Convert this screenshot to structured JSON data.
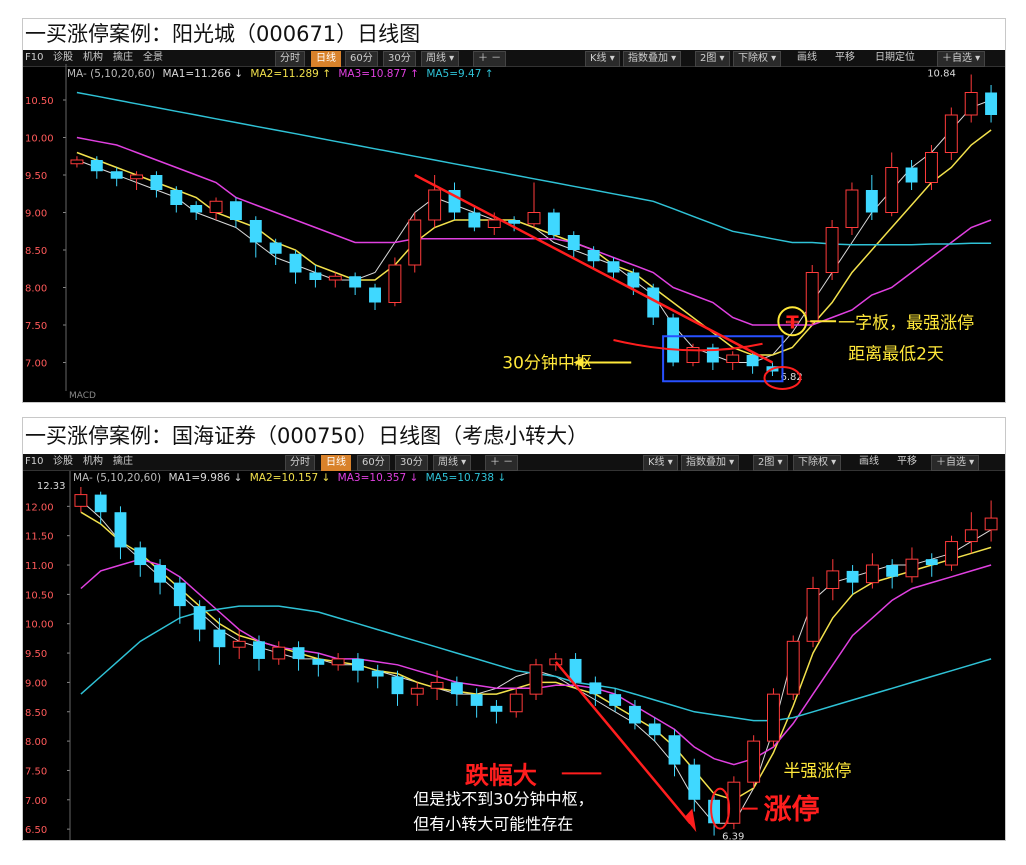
{
  "colors": {
    "ma1": "#d9d9d9",
    "ma2": "#f2e14c",
    "ma3": "#e040e0",
    "ma5": "#2fc2d6",
    "up": "#ff3b3b",
    "down": "#3fd8ff",
    "red_note": "#ff1e1e",
    "yellow_note": "#ffe83a",
    "box": "#2850ff",
    "grid": "#444444"
  },
  "panels": [
    {
      "title": "一买涨停案例：阳光城（000671）日线图",
      "toolbar_left": [
        "F10",
        "诊股",
        "机构",
        "擒庄",
        "全景"
      ],
      "toolbar_mid": [
        "分时",
        "日线",
        "60分",
        "30分",
        "周线 ▾",
        "＋ －"
      ],
      "toolbar_right": [
        "K线 ▾",
        "指数叠加 ▾",
        "2图 ▾",
        "下除权 ▾",
        "画线",
        "平移",
        "日期定位",
        "＋自选 ▾"
      ],
      "active_tab": "日线",
      "ma_label": "MA- (5,10,20,60)",
      "ma_values": [
        "MA1=11.266 ↓",
        "MA2=11.289 ↑",
        "MA3=10.877 ↑",
        "MA5=9.47 ↑"
      ],
      "annotations": {
        "high": "10.84",
        "low": "6.82",
        "right1": "一字板，最强涨停",
        "right2": "距离最低2天",
        "left": "30分钟中枢",
        "circle": "T"
      },
      "bottom_label": "MACD"
    },
    {
      "title": "一买涨停案例：国海证券（000750）日线图（考虑小转大）",
      "toolbar_left": [
        "F10",
        "诊股",
        "机构",
        "擒庄"
      ],
      "toolbar_mid": [
        "分时",
        "日线",
        "60分",
        "30分",
        "周线 ▾",
        "＋ －"
      ],
      "toolbar_right": [
        "K线 ▾",
        "指数叠加 ▾",
        "2图 ▾",
        "下除权 ▾",
        "画线",
        "平移",
        "＋自选 ▾"
      ],
      "active_tab": "日线",
      "ma_label": "MA- (5,10,20,60)",
      "ma_values": [
        "MA1=9.986 ↓",
        "MA2=10.157 ↓",
        "MA3=10.357 ↓",
        "MA5=10.738 ↓"
      ],
      "annotations": {
        "high": "12.33",
        "low": "6.39",
        "red1": "跌幅大",
        "note1": "但是找不到30分钟中枢，",
        "note2": "但有小转大可能性存在",
        "right": "半强涨停",
        "red2": "涨停"
      }
    }
  ],
  "chart_data": [
    {
      "type": "candlestick",
      "ylim": [
        6.7,
        10.9
      ],
      "yticks": [
        "10.50",
        "10.00",
        "9.50",
        "9.00",
        "8.50",
        "8.00",
        "7.50",
        "7.00"
      ],
      "series": [
        {
          "name": "MA1",
          "y": [
            9.7,
            9.6,
            9.5,
            9.4,
            9.3,
            9.2,
            9.0,
            8.9,
            8.8,
            8.6,
            8.4,
            8.3,
            8.2,
            8.1,
            8.1,
            8.2,
            8.6,
            9.0,
            9.2,
            9.1,
            9.0,
            8.9,
            8.9,
            8.8,
            8.6,
            8.5,
            8.4,
            8.3,
            8.1,
            7.9,
            7.5,
            7.2,
            7.1,
            7.0,
            7.0,
            7.1,
            7.4,
            7.8,
            8.2,
            8.6,
            9.0,
            9.3,
            9.6,
            9.8,
            10.1,
            10.4,
            10.5
          ]
        },
        {
          "name": "MA2",
          "y": [
            9.8,
            9.7,
            9.6,
            9.5,
            9.4,
            9.3,
            9.2,
            9.0,
            8.9,
            8.8,
            8.6,
            8.5,
            8.3,
            8.2,
            8.1,
            8.1,
            8.3,
            8.6,
            8.8,
            8.9,
            8.9,
            8.9,
            8.9,
            8.8,
            8.7,
            8.6,
            8.5,
            8.3,
            8.2,
            8.0,
            7.8,
            7.6,
            7.4,
            7.2,
            7.1,
            7.1,
            7.2,
            7.5,
            7.8,
            8.2,
            8.5,
            8.8,
            9.1,
            9.4,
            9.6,
            9.9,
            10.1
          ]
        },
        {
          "name": "MA3",
          "y": [
            10.0,
            9.95,
            9.9,
            9.8,
            9.7,
            9.6,
            9.5,
            9.4,
            9.2,
            9.1,
            9.0,
            8.9,
            8.8,
            8.7,
            8.6,
            8.6,
            8.6,
            8.65,
            8.65,
            8.65,
            8.65,
            8.65,
            8.65,
            8.65,
            8.65,
            8.6,
            8.5,
            8.4,
            8.3,
            8.2,
            8.0,
            7.9,
            7.8,
            7.6,
            7.5,
            7.5,
            7.5,
            7.5,
            7.6,
            7.7,
            7.9,
            8.0,
            8.2,
            8.4,
            8.6,
            8.8,
            8.9
          ]
        },
        {
          "name": "MA5",
          "y": [
            10.6,
            10.55,
            10.5,
            10.45,
            10.4,
            10.35,
            10.3,
            10.25,
            10.2,
            10.15,
            10.1,
            10.05,
            10.0,
            9.95,
            9.9,
            9.85,
            9.8,
            9.75,
            9.7,
            9.65,
            9.6,
            9.55,
            9.5,
            9.45,
            9.4,
            9.35,
            9.3,
            9.25,
            9.2,
            9.15,
            9.05,
            8.95,
            8.85,
            8.75,
            8.7,
            8.65,
            8.6,
            8.6,
            8.58,
            8.57,
            8.57,
            8.57,
            8.57,
            8.58,
            8.58,
            8.59,
            8.59
          ]
        }
      ],
      "candles": [
        [
          9.65,
          9.7,
          9.6,
          9.75
        ],
        [
          9.7,
          9.55,
          9.45,
          9.75
        ],
        [
          9.55,
          9.45,
          9.35,
          9.6
        ],
        [
          9.45,
          9.5,
          9.3,
          9.55
        ],
        [
          9.5,
          9.3,
          9.2,
          9.55
        ],
        [
          9.3,
          9.1,
          9.0,
          9.35
        ],
        [
          9.1,
          9.0,
          8.9,
          9.15
        ],
        [
          9.0,
          9.15,
          8.9,
          9.2
        ],
        [
          9.15,
          8.9,
          8.8,
          9.2
        ],
        [
          8.9,
          8.6,
          8.4,
          8.95
        ],
        [
          8.6,
          8.45,
          8.3,
          8.65
        ],
        [
          8.45,
          8.2,
          8.05,
          8.5
        ],
        [
          8.2,
          8.1,
          8.0,
          8.3
        ],
        [
          8.1,
          8.15,
          8.0,
          8.2
        ],
        [
          8.15,
          8.0,
          7.9,
          8.2
        ],
        [
          8.0,
          7.8,
          7.7,
          8.05
        ],
        [
          7.8,
          8.3,
          7.75,
          8.4
        ],
        [
          8.3,
          8.9,
          8.2,
          9.0
        ],
        [
          8.9,
          9.3,
          8.8,
          9.5
        ],
        [
          9.3,
          9.0,
          8.9,
          9.4
        ],
        [
          9.0,
          8.8,
          8.75,
          9.1
        ],
        [
          8.8,
          8.9,
          8.7,
          9.0
        ],
        [
          8.9,
          8.85,
          8.75,
          8.95
        ],
        [
          8.85,
          9.0,
          8.8,
          9.4
        ],
        [
          9.0,
          8.7,
          8.65,
          9.05
        ],
        [
          8.7,
          8.5,
          8.4,
          8.75
        ],
        [
          8.5,
          8.35,
          8.25,
          8.55
        ],
        [
          8.35,
          8.2,
          8.1,
          8.4
        ],
        [
          8.2,
          8.0,
          7.9,
          8.25
        ],
        [
          8.0,
          7.6,
          7.5,
          8.05
        ],
        [
          7.6,
          7.0,
          6.95,
          7.65
        ],
        [
          7.0,
          7.2,
          6.95,
          7.25
        ],
        [
          7.2,
          7.0,
          6.9,
          7.25
        ],
        [
          7.0,
          7.1,
          6.9,
          7.15
        ],
        [
          7.1,
          6.95,
          6.85,
          7.15
        ],
        [
          6.95,
          6.88,
          6.82,
          7.0
        ],
        [
          7.55,
          7.55,
          7.55,
          7.55
        ],
        [
          7.55,
          8.2,
          7.5,
          8.3
        ],
        [
          8.2,
          8.8,
          8.1,
          8.9
        ],
        [
          8.8,
          9.3,
          8.7,
          9.4
        ],
        [
          9.3,
          9.0,
          8.9,
          9.5
        ],
        [
          9.0,
          9.6,
          8.95,
          9.8
        ],
        [
          9.6,
          9.4,
          9.3,
          9.7
        ],
        [
          9.4,
          9.8,
          9.3,
          9.9
        ],
        [
          9.8,
          10.3,
          9.7,
          10.4
        ],
        [
          10.3,
          10.6,
          10.2,
          10.84
        ],
        [
          10.6,
          10.3,
          10.2,
          10.7
        ]
      ]
    },
    {
      "type": "candlestick",
      "ylim": [
        6.4,
        12.5
      ],
      "yticks": [
        "12.00",
        "11.50",
        "11.00",
        "10.50",
        "10.00",
        "9.50",
        "9.00",
        "8.50",
        "8.00",
        "7.50",
        "7.00",
        "6.50"
      ],
      "series": [
        {
          "name": "MA1",
          "y": [
            12.1,
            11.8,
            11.4,
            11.1,
            10.8,
            10.5,
            10.2,
            9.9,
            9.7,
            9.6,
            9.5,
            9.4,
            9.4,
            9.3,
            9.3,
            9.2,
            9.1,
            9.0,
            8.9,
            8.8,
            8.8,
            8.9,
            9.1,
            9.2,
            9.1,
            8.9,
            8.7,
            8.5,
            8.3,
            8.0,
            7.6,
            7.0,
            6.6,
            6.6,
            7.2,
            8.2,
            9.5,
            10.4,
            10.7,
            10.8,
            10.9,
            11.0,
            11.0,
            11.1,
            11.2,
            11.4,
            11.6
          ]
        },
        {
          "name": "MA2",
          "y": [
            11.9,
            11.7,
            11.4,
            11.2,
            10.9,
            10.6,
            10.3,
            10.0,
            9.8,
            9.7,
            9.6,
            9.5,
            9.4,
            9.35,
            9.3,
            9.2,
            9.15,
            9.0,
            8.9,
            8.85,
            8.8,
            8.8,
            8.9,
            9.0,
            9.0,
            8.9,
            8.8,
            8.6,
            8.4,
            8.2,
            7.9,
            7.5,
            7.1,
            7.0,
            7.2,
            7.8,
            8.6,
            9.5,
            10.1,
            10.5,
            10.7,
            10.8,
            10.9,
            11.0,
            11.1,
            11.2,
            11.3
          ]
        },
        {
          "name": "MA3",
          "y": [
            10.6,
            10.9,
            11.0,
            11.1,
            11.0,
            10.8,
            10.5,
            10.2,
            9.9,
            9.7,
            9.6,
            9.55,
            9.5,
            9.4,
            9.4,
            9.35,
            9.3,
            9.2,
            9.1,
            9.0,
            8.95,
            8.9,
            8.9,
            8.9,
            8.95,
            8.95,
            8.9,
            8.8,
            8.6,
            8.4,
            8.2,
            7.9,
            7.7,
            7.6,
            7.7,
            7.9,
            8.3,
            8.8,
            9.3,
            9.8,
            10.1,
            10.4,
            10.6,
            10.7,
            10.8,
            10.9,
            11.0
          ]
        },
        {
          "name": "MA5",
          "y": [
            8.8,
            9.1,
            9.4,
            9.7,
            9.9,
            10.1,
            10.2,
            10.25,
            10.3,
            10.3,
            10.3,
            10.25,
            10.2,
            10.1,
            10.0,
            9.9,
            9.8,
            9.7,
            9.6,
            9.5,
            9.4,
            9.3,
            9.2,
            9.15,
            9.1,
            9.0,
            8.95,
            8.9,
            8.8,
            8.7,
            8.6,
            8.5,
            8.45,
            8.4,
            8.35,
            8.35,
            8.4,
            8.5,
            8.6,
            8.7,
            8.8,
            8.9,
            9.0,
            9.1,
            9.2,
            9.3,
            9.4
          ]
        }
      ],
      "candles": [
        [
          12.0,
          12.2,
          11.9,
          12.33
        ],
        [
          12.2,
          11.9,
          11.7,
          12.25
        ],
        [
          11.9,
          11.3,
          11.1,
          12.0
        ],
        [
          11.3,
          11.0,
          10.8,
          11.4
        ],
        [
          11.0,
          10.7,
          10.5,
          11.1
        ],
        [
          10.7,
          10.3,
          10.0,
          10.8
        ],
        [
          10.3,
          9.9,
          9.7,
          10.4
        ],
        [
          9.9,
          9.6,
          9.3,
          10.1
        ],
        [
          9.6,
          9.7,
          9.4,
          9.9
        ],
        [
          9.7,
          9.4,
          9.2,
          9.8
        ],
        [
          9.4,
          9.6,
          9.3,
          9.7
        ],
        [
          9.6,
          9.4,
          9.2,
          9.7
        ],
        [
          9.4,
          9.3,
          9.1,
          9.5
        ],
        [
          9.3,
          9.4,
          9.2,
          9.5
        ],
        [
          9.4,
          9.2,
          9.0,
          9.5
        ],
        [
          9.2,
          9.1,
          8.9,
          9.3
        ],
        [
          9.1,
          8.8,
          8.6,
          9.2
        ],
        [
          8.8,
          8.9,
          8.6,
          9.0
        ],
        [
          8.9,
          9.0,
          8.7,
          9.2
        ],
        [
          9.0,
          8.8,
          8.6,
          9.1
        ],
        [
          8.8,
          8.6,
          8.4,
          8.9
        ],
        [
          8.6,
          8.5,
          8.3,
          8.7
        ],
        [
          8.5,
          8.8,
          8.4,
          8.9
        ],
        [
          8.8,
          9.3,
          8.7,
          9.4
        ],
        [
          9.3,
          9.4,
          9.2,
          9.5
        ],
        [
          9.4,
          9.0,
          8.9,
          9.5
        ],
        [
          9.0,
          8.8,
          8.6,
          9.1
        ],
        [
          8.8,
          8.6,
          8.5,
          8.9
        ],
        [
          8.6,
          8.3,
          8.2,
          8.7
        ],
        [
          8.3,
          8.1,
          8.0,
          8.4
        ],
        [
          8.1,
          7.6,
          7.4,
          8.2
        ],
        [
          7.6,
          7.0,
          6.8,
          7.7
        ],
        [
          7.0,
          6.6,
          6.39,
          7.1
        ],
        [
          6.6,
          7.3,
          6.5,
          7.4
        ],
        [
          7.3,
          8.0,
          7.2,
          8.1
        ],
        [
          8.0,
          8.8,
          7.9,
          8.9
        ],
        [
          8.8,
          9.7,
          8.7,
          9.8
        ],
        [
          9.7,
          10.6,
          9.6,
          10.8
        ],
        [
          10.6,
          10.9,
          10.4,
          11.1
        ],
        [
          10.9,
          10.7,
          10.5,
          11.0
        ],
        [
          10.7,
          11.0,
          10.6,
          11.2
        ],
        [
          11.0,
          10.8,
          10.6,
          11.1
        ],
        [
          10.8,
          11.1,
          10.7,
          11.3
        ],
        [
          11.1,
          11.0,
          10.8,
          11.2
        ],
        [
          11.0,
          11.4,
          10.9,
          11.5
        ],
        [
          11.4,
          11.6,
          11.2,
          11.9
        ],
        [
          11.6,
          11.8,
          11.4,
          12.1
        ]
      ]
    }
  ]
}
